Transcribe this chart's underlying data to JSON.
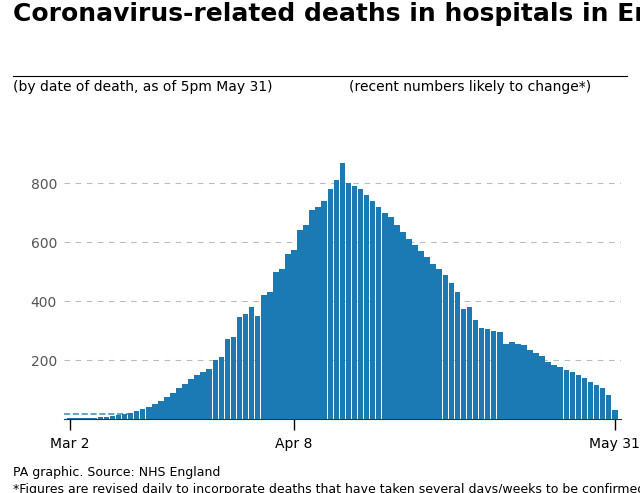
{
  "title": "Coronavirus-related deaths in hospitals in England",
  "subtitle_left": "(by date of death, as of 5pm May 31)",
  "subtitle_right": "(recent numbers likely to change*)",
  "footer1": "PA graphic. Source: NHS England",
  "footer2": "*Figures are revised daily to incorporate deaths that have taken several days/weeks to be confirmed",
  "bar_color": "#1b7ab3",
  "background_color": "#ffffff",
  "yticks": [
    200,
    400,
    600,
    800
  ],
  "ylim": [
    0,
    920
  ],
  "xtick_labels": [
    "Mar 2",
    "Apr 8",
    "May 31"
  ],
  "xtick_positions": [
    0,
    37,
    90
  ],
  "grid_color": "#bbbbbb",
  "title_fontsize": 18,
  "subtitle_fontsize": 10,
  "footer_fontsize": 9,
  "values": [
    2,
    2,
    3,
    3,
    5,
    6,
    8,
    10,
    14,
    18,
    22,
    28,
    35,
    42,
    52,
    62,
    75,
    90,
    105,
    120,
    135,
    148,
    160,
    170,
    200,
    210,
    270,
    280,
    345,
    355,
    380,
    350,
    420,
    430,
    500,
    510,
    560,
    575,
    640,
    660,
    710,
    720,
    740,
    780,
    810,
    870,
    800,
    790,
    780,
    760,
    740,
    720,
    700,
    685,
    660,
    635,
    610,
    590,
    570,
    550,
    525,
    510,
    490,
    460,
    430,
    375,
    380,
    335,
    310,
    305,
    300,
    295,
    255,
    260,
    255,
    250,
    235,
    225,
    215,
    195,
    185,
    175,
    165,
    158,
    148,
    138,
    125,
    115,
    105,
    80,
    30
  ]
}
